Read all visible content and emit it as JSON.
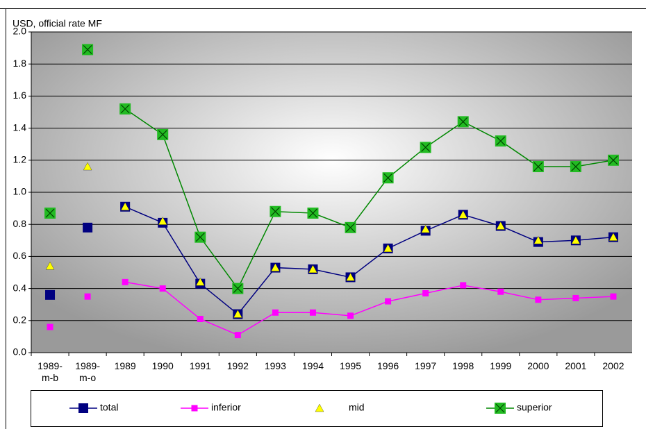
{
  "chart_data": {
    "type": "line",
    "ylabel": "USD, official rate MF",
    "categories": [
      "1989-m-b",
      "1989-m-o",
      "1989",
      "1990",
      "1991",
      "1992",
      "1993",
      "1994",
      "1995",
      "1996",
      "1997",
      "1998",
      "1999",
      "2000",
      "2001",
      "2002"
    ],
    "line_start": 2,
    "series": [
      {
        "name": "total",
        "color": "#000080",
        "marker": "square",
        "line": true,
        "values": [
          0.36,
          0.78,
          0.91,
          0.81,
          0.43,
          0.24,
          0.53,
          0.52,
          0.47,
          0.65,
          0.76,
          0.86,
          0.79,
          0.69,
          0.7,
          0.72
        ]
      },
      {
        "name": "inferior",
        "color": "#ff00ff",
        "marker": "small-square",
        "line": true,
        "values": [
          0.16,
          0.35,
          0.44,
          0.4,
          0.21,
          0.11,
          0.25,
          0.25,
          0.23,
          0.32,
          0.37,
          0.42,
          0.38,
          0.33,
          0.34,
          0.35
        ]
      },
      {
        "name": "mid",
        "color": "#ffff00",
        "marker": "triangle",
        "line": false,
        "values": [
          0.54,
          1.16,
          0.91,
          0.82,
          0.44,
          0.24,
          0.53,
          0.52,
          0.47,
          0.65,
          0.77,
          0.86,
          0.79,
          0.7,
          0.7,
          0.72
        ]
      },
      {
        "name": "superior",
        "color": "#22bb22",
        "marker": "x-square",
        "line": true,
        "values": [
          0.87,
          1.89,
          1.52,
          1.36,
          0.72,
          0.4,
          0.88,
          0.87,
          0.78,
          1.09,
          1.28,
          1.44,
          1.32,
          1.16,
          1.16,
          1.2
        ]
      }
    ],
    "ylim": [
      0,
      2
    ],
    "yticks": [
      {
        "value": 0,
        "label": "0.0"
      },
      0.2,
      0.4,
      0.6,
      0.8,
      {
        "value": 1,
        "label": "1.0"
      },
      1.2,
      1.4,
      1.6,
      1.8,
      {
        "value": 2,
        "label": "2.0"
      }
    ],
    "grid": true,
    "legend": "bottom"
  }
}
